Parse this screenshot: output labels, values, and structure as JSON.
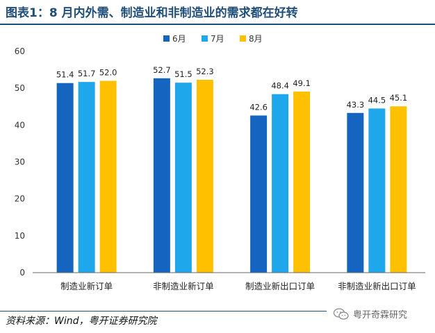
{
  "title": "图表1：8 月内外需、制造业和非制造业的需求都在好转",
  "source": "资料来源：Wind，粤开证券研究院",
  "watermark": "粤开奇霖研究",
  "chart_data": {
    "type": "bar",
    "title": "",
    "categories": [
      "制造业新订单",
      "非制造业新订单",
      "制造业新出口订单",
      "非制造业新出口订单"
    ],
    "series": [
      {
        "name": "6月",
        "values": [
          51.4,
          52.7,
          42.6,
          43.3
        ],
        "color": "#1565c0"
      },
      {
        "name": "7月",
        "values": [
          51.7,
          51.5,
          48.4,
          44.5
        ],
        "color": "#1ea7ea"
      },
      {
        "name": "8月",
        "values": [
          52.0,
          52.3,
          49.1,
          45.1
        ],
        "color": "#ffc000"
      }
    ],
    "ylim": [
      0,
      60
    ],
    "yticks": [
      0,
      10,
      20,
      30,
      40,
      50,
      60
    ],
    "xlabel": "",
    "ylabel": "",
    "legend": "top-center",
    "grid": false
  }
}
